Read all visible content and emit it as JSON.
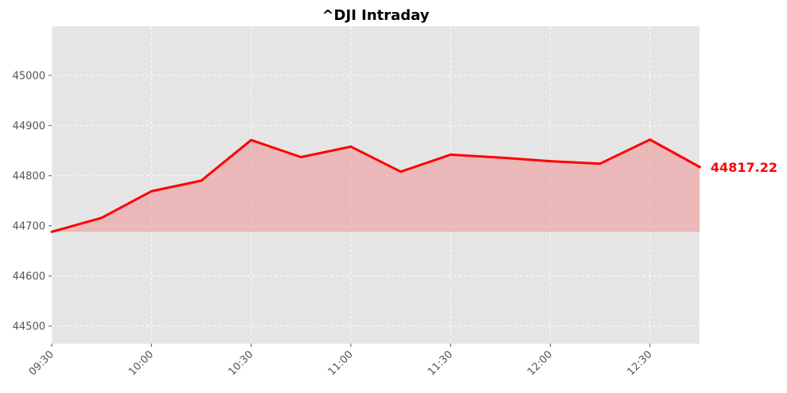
{
  "chart_data": {
    "type": "area",
    "title": "^DJI Intraday",
    "xlabel": "",
    "ylabel": "",
    "x": [
      "09:30",
      "09:45",
      "10:00",
      "10:15",
      "10:30",
      "10:45",
      "11:00",
      "11:15",
      "11:30",
      "11:45",
      "12:00",
      "12:15",
      "12:30",
      "12:45"
    ],
    "values": [
      44688,
      44716,
      44769,
      44790,
      44871,
      44837,
      44858,
      44808,
      44842,
      44836,
      44829,
      44824,
      44872,
      44817.22
    ],
    "x_ticks": [
      "09:30",
      "10:00",
      "10:30",
      "11:00",
      "11:30",
      "12:00",
      "12:30"
    ],
    "y_ticks": [
      44500,
      44600,
      44700,
      44800,
      44900,
      45000
    ],
    "ylim": [
      44465,
      45098
    ],
    "baseline": 44688,
    "last_value_label": "44817.22",
    "grid": true,
    "colors": {
      "line": "#ff0000",
      "fill": "#f08080",
      "plot_bg": "#e5e5e5",
      "grid": "#ffffff",
      "tick_text": "#555555",
      "title_text": "#000000"
    }
  }
}
